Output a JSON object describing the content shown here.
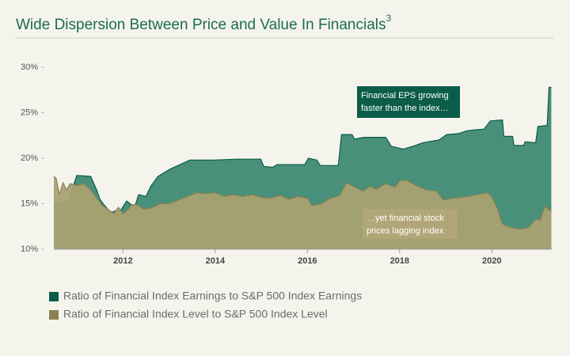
{
  "chart_data": {
    "type": "area",
    "title": "Wide Dispersion Between Price and Value In Financials",
    "title_superscript": "3",
    "xlim": [
      2010.5,
      2021.3
    ],
    "xticks": [
      2012,
      2014,
      2016,
      2018,
      2020
    ],
    "ylim": [
      10,
      30
    ],
    "yticks": [
      {
        "value": 10,
        "label": "10%"
      },
      {
        "value": 15,
        "label": "15%"
      },
      {
        "value": 20,
        "label": "20%"
      },
      {
        "value": 25,
        "label": "25%"
      },
      {
        "value": 30,
        "label": "30%"
      }
    ],
    "grid": false,
    "legend": "bottom-left",
    "series": [
      {
        "name": "Ratio of Financial Index Earnings to S&P 500 Index Earnings",
        "color": "#0b5c49",
        "fill": "#3e8a74",
        "x": [
          2010.5,
          2010.8,
          2011.0,
          2011.3,
          2011.43,
          2011.5,
          2011.6,
          2011.74,
          2011.82,
          2011.94,
          2012.08,
          2012.25,
          2012.34,
          2012.5,
          2012.6,
          2012.76,
          2013.02,
          2013.45,
          2013.96,
          2014.48,
          2014.99,
          2015.05,
          2015.25,
          2015.34,
          2015.94,
          2016.02,
          2016.2,
          2016.28,
          2016.67,
          2016.74,
          2016.97,
          2017.02,
          2017.22,
          2017.7,
          2017.82,
          2018.08,
          2018.34,
          2018.5,
          2018.85,
          2019.02,
          2019.28,
          2019.45,
          2019.59,
          2019.83,
          2019.97,
          2020.23,
          2020.26,
          2020.45,
          2020.48,
          2020.69,
          2020.72,
          2020.95,
          2021.0,
          2021.2,
          2021.24,
          2021.29
        ],
        "values": [
          15.0,
          15.2,
          18.1,
          18.0,
          16.5,
          15.5,
          14.8,
          14.0,
          14.2,
          14.2,
          15.3,
          14.6,
          16.0,
          15.8,
          16.9,
          18.0,
          18.8,
          19.8,
          19.8,
          19.9,
          19.9,
          19.1,
          19.0,
          19.3,
          19.3,
          20.0,
          19.8,
          19.2,
          19.2,
          22.6,
          22.6,
          22.1,
          22.3,
          22.3,
          21.3,
          21.0,
          21.4,
          21.7,
          22.0,
          22.6,
          22.7,
          23.0,
          23.1,
          23.2,
          24.1,
          24.2,
          22.4,
          22.4,
          21.4,
          21.4,
          21.8,
          21.7,
          23.5,
          23.6,
          27.8,
          27.8
        ]
      },
      {
        "name": "Ratio of Financial Index Level to S&P 500 Index Level",
        "color": "#8a8250",
        "fill": "#a9a172",
        "x": [
          2010.5,
          2010.55,
          2010.62,
          2010.7,
          2010.78,
          2010.85,
          2011.0,
          2011.15,
          2011.3,
          2011.45,
          2011.55,
          2011.7,
          2011.8,
          2011.9,
          2012.0,
          2012.1,
          2012.2,
          2012.3,
          2012.45,
          2012.6,
          2012.8,
          2013.0,
          2013.2,
          2013.4,
          2013.6,
          2013.8,
          2014.0,
          2014.2,
          2014.4,
          2014.6,
          2014.8,
          2015.0,
          2015.2,
          2015.4,
          2015.6,
          2015.8,
          2016.0,
          2016.1,
          2016.3,
          2016.5,
          2016.7,
          2016.85,
          2017.0,
          2017.2,
          2017.35,
          2017.5,
          2017.7,
          2017.9,
          2018.0,
          2018.15,
          2018.35,
          2018.6,
          2018.8,
          2018.95,
          2019.15,
          2019.35,
          2019.6,
          2019.9,
          2020.0,
          2020.12,
          2020.22,
          2020.35,
          2020.5,
          2020.65,
          2020.8,
          2020.95,
          2021.05,
          2021.15,
          2021.25,
          2021.29
        ],
        "values": [
          18.0,
          17.8,
          16.0,
          17.3,
          16.5,
          17.2,
          17.0,
          17.2,
          16.5,
          15.5,
          14.8,
          14.3,
          13.9,
          14.6,
          13.9,
          14.3,
          14.9,
          14.9,
          14.4,
          14.5,
          15.0,
          15.0,
          15.4,
          15.8,
          16.2,
          16.1,
          16.2,
          15.8,
          16.0,
          15.8,
          16.0,
          15.7,
          15.6,
          15.9,
          15.5,
          15.8,
          15.6,
          14.8,
          15.0,
          15.6,
          15.9,
          17.3,
          16.9,
          16.4,
          16.9,
          16.6,
          17.2,
          16.8,
          17.5,
          17.6,
          17.0,
          16.5,
          16.4,
          15.4,
          15.6,
          15.7,
          15.9,
          16.2,
          15.7,
          14.5,
          12.8,
          12.5,
          12.3,
          12.2,
          12.4,
          13.3,
          13.2,
          14.7,
          14.3,
          14.2
        ]
      }
    ],
    "annotations": [
      {
        "lines": [
          "Financial EPS growing",
          "faster than the index…"
        ],
        "color": "#0b5c49"
      },
      {
        "lines": [
          "…yet financial stock",
          "prices lagging index"
        ],
        "color": "#b0a677"
      }
    ]
  }
}
